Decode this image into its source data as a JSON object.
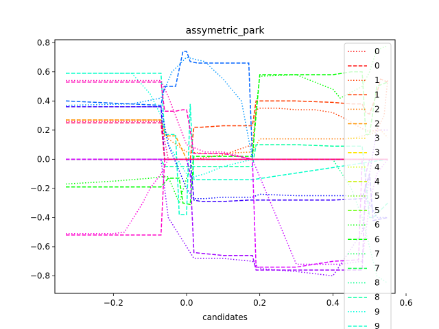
{
  "chart_data": {
    "type": "line",
    "title": "assymetric_park",
    "xlabel": "candidates",
    "ylabel": "",
    "xlim": [
      -0.36,
      0.57
    ],
    "ylim": [
      -0.92,
      0.82
    ],
    "xticks": [
      -0.2,
      0.0,
      0.2,
      0.4,
      0.6
    ],
    "xtick_labels": [
      "−0.2",
      "0.0",
      "0.2",
      "0.4",
      "0.6"
    ],
    "yticks": [
      -0.8,
      -0.6,
      -0.4,
      -0.2,
      0.0,
      0.2,
      0.4,
      0.6,
      0.8
    ],
    "ytick_labels": [
      "−0.8",
      "−0.6",
      "−0.4",
      "−0.2",
      "0.0",
      "0.2",
      "0.4",
      "0.6",
      "0.8"
    ],
    "grid": false,
    "legend_placement": "right",
    "series": [
      {
        "name": "0",
        "style": "dotted",
        "color": "#ff0000",
        "x": [
          -0.33,
          0.55
        ],
        "y": [
          0.0,
          0.0
        ]
      },
      {
        "name": "0",
        "style": "dashed",
        "color": "#ff0000",
        "x": [
          -0.33,
          0.55
        ],
        "y": [
          0.0,
          0.0
        ]
      },
      {
        "name": "1",
        "style": "dotted",
        "color": "#ff3c00",
        "x": [
          -0.33,
          -0.07,
          -0.05,
          0.0,
          0.02,
          0.1,
          0.18,
          0.19,
          0.2,
          0.25,
          0.3,
          0.35,
          0.4,
          0.44,
          0.48,
          0.5,
          0.52,
          0.54,
          0.55
        ],
        "y": [
          0.0,
          0.0,
          0.0,
          0.0,
          0.0,
          0.03,
          0.1,
          0.34,
          0.35,
          0.35,
          0.34,
          0.34,
          0.32,
          0.27,
          0.21,
          0.19,
          0.2,
          0.3,
          0.55
        ]
      },
      {
        "name": "1",
        "style": "dashed",
        "color": "#ff3c00",
        "x": [
          -0.33,
          -0.07,
          -0.05,
          0.0,
          0.01,
          0.02,
          0.04,
          0.1,
          0.15,
          0.18,
          0.19,
          0.25,
          0.3,
          0.4,
          0.45,
          0.48,
          0.49,
          0.5,
          0.52,
          0.53,
          0.55
        ],
        "y": [
          0.0,
          0.0,
          0.0,
          0.0,
          0.0,
          0.22,
          0.22,
          0.23,
          0.23,
          0.23,
          0.4,
          0.4,
          0.4,
          0.39,
          0.38,
          0.38,
          0.32,
          0.31,
          0.45,
          0.55,
          0.53
        ]
      },
      {
        "name": "2",
        "style": "dotted",
        "color": "#ff7800",
        "x": [
          -0.33,
          -0.1,
          -0.07,
          -0.05,
          0.0,
          0.05,
          0.1,
          0.18,
          0.2,
          0.3,
          0.4,
          0.45,
          0.48,
          0.5,
          0.53,
          0.55
        ],
        "y": [
          0.27,
          0.27,
          0.27,
          0.14,
          0.05,
          0.04,
          0.04,
          0.05,
          0.14,
          0.14,
          0.14,
          0.14,
          0.16,
          0.17,
          0.2,
          0.15
        ]
      },
      {
        "name": "2",
        "style": "dashed",
        "color": "#ff9600",
        "x": [
          -0.33,
          -0.07,
          -0.06,
          -0.05,
          -0.03,
          0.0,
          0.55
        ],
        "y": [
          0.27,
          0.27,
          0.16,
          0.16,
          0.16,
          0.0,
          0.0
        ]
      },
      {
        "name": "3",
        "style": "dotted",
        "color": "#ffd200",
        "x": [
          -0.33,
          0.55
        ],
        "y": [
          0.0,
          0.0
        ]
      },
      {
        "name": "3",
        "style": "dashed",
        "color": "#ffe600",
        "x": [
          -0.33,
          0.55
        ],
        "y": [
          0.0,
          0.0
        ]
      },
      {
        "name": "4",
        "style": "dotted",
        "color": "#d2ff00",
        "x": [
          -0.33,
          0.55
        ],
        "y": [
          0.0,
          0.0
        ]
      },
      {
        "name": "4",
        "style": "dashed",
        "color": "#c8f000",
        "x": [
          -0.33,
          0.55
        ],
        "y": [
          0.0,
          0.0
        ]
      },
      {
        "name": "5",
        "style": "dotted",
        "color": "#78ff00",
        "x": [
          -0.33,
          0.55
        ],
        "y": [
          0.0,
          0.0
        ]
      },
      {
        "name": "5",
        "style": "dashed",
        "color": "#64ff00",
        "x": [
          -0.33,
          0.55
        ],
        "y": [
          0.0,
          0.0
        ]
      },
      {
        "name": "6",
        "style": "dotted",
        "color": "#00ff00",
        "x": [
          -0.33,
          -0.2,
          -0.1,
          -0.07,
          -0.05,
          -0.02,
          0.0,
          0.02,
          0.1,
          0.15,
          0.18,
          0.19,
          0.2,
          0.3,
          0.4,
          0.42,
          0.48,
          0.5,
          0.52,
          0.55
        ],
        "y": [
          -0.17,
          -0.15,
          -0.13,
          -0.12,
          -0.12,
          -0.3,
          -0.13,
          0.0,
          0.0,
          0.0,
          0.0,
          0.35,
          0.57,
          0.58,
          0.48,
          0.42,
          0.5,
          0.6,
          0.75,
          0.78
        ]
      },
      {
        "name": "6",
        "style": "dashed",
        "color": "#00ff00",
        "x": [
          -0.33,
          -0.07,
          -0.05,
          -0.02,
          -0.01,
          0.01,
          0.02,
          0.05,
          0.1,
          0.18,
          0.19,
          0.2,
          0.3,
          0.4,
          0.45,
          0.48,
          0.49,
          0.5,
          0.52,
          0.55
        ],
        "y": [
          -0.19,
          -0.19,
          -0.13,
          -0.13,
          -0.3,
          -0.31,
          0.02,
          0.02,
          0.02,
          0.02,
          0.3,
          0.58,
          0.58,
          0.58,
          0.6,
          0.6,
          0.17,
          0.17,
          0.5,
          0.53
        ]
      },
      {
        "name": "7",
        "style": "dotted",
        "color": "#00ff50",
        "x": [
          -0.33,
          0.55
        ],
        "y": [
          0.0,
          0.0
        ]
      },
      {
        "name": "7",
        "style": "dashed",
        "color": "#00ff3c",
        "x": [
          -0.33,
          0.55
        ],
        "y": [
          0.0,
          0.0
        ]
      },
      {
        "name": "8",
        "style": "dotted",
        "color": "#00ff8c",
        "x": [
          -0.33,
          0.0,
          0.18,
          0.4,
          0.45,
          0.48,
          0.5,
          0.52,
          0.55
        ],
        "y": [
          0.0,
          0.0,
          0.0,
          0.0,
          -0.2,
          -0.4,
          -0.6,
          -0.8,
          -0.85
        ]
      },
      {
        "name": "8",
        "style": "dashed",
        "color": "#00ffa0",
        "x": [
          -0.33,
          -0.07,
          -0.06,
          -0.03,
          0.0,
          0.02,
          0.05,
          0.1,
          0.18,
          0.19,
          0.3,
          0.4,
          0.48,
          0.5,
          0.51,
          0.55
        ],
        "y": [
          0.0,
          0.0,
          -0.05,
          -0.05,
          -0.05,
          -0.05,
          -0.05,
          -0.05,
          -0.05,
          0.1,
          0.1,
          0.09,
          0.09,
          -0.4,
          -0.4,
          -0.3
        ]
      },
      {
        "name": "9",
        "style": "dotted",
        "color": "#00ffdc",
        "x": [
          -0.33,
          -0.15,
          -0.1,
          -0.07,
          -0.05,
          0.0,
          0.02,
          0.05,
          0.1,
          0.18,
          0.55
        ],
        "y": [
          0.59,
          0.59,
          0.45,
          0.3,
          0.1,
          -0.1,
          -0.12,
          -0.1,
          -0.05,
          0.0,
          0.0
        ]
      },
      {
        "name": "9",
        "style": "dashed",
        "color": "#00ffc8",
        "x": [
          -0.33,
          -0.07,
          -0.06,
          -0.03,
          -0.02,
          0.0,
          0.01,
          0.02,
          0.1,
          0.15,
          0.18,
          0.55
        ],
        "y": [
          0.59,
          0.59,
          0.17,
          0.17,
          -0.38,
          -0.38,
          0.38,
          -0.14,
          -0.14,
          -0.14,
          -0.14,
          0.0
        ]
      },
      {
        "name": "",
        "style": "dotted",
        "color": "#0096ff",
        "x": [
          -0.33,
          -0.15,
          -0.07,
          -0.04,
          0.0,
          0.05,
          0.1,
          0.15,
          0.18,
          0.2,
          0.55
        ],
        "y": [
          0.37,
          0.38,
          0.42,
          0.6,
          0.7,
          0.67,
          0.55,
          0.4,
          0.0,
          0.0,
          0.0
        ]
      },
      {
        "name": "",
        "style": "dashed",
        "color": "#0064ff",
        "x": [
          -0.33,
          -0.07,
          -0.06,
          -0.03,
          -0.01,
          0.0,
          0.01,
          0.03,
          0.1,
          0.17,
          0.18,
          0.55
        ],
        "y": [
          0.4,
          0.37,
          0.5,
          0.5,
          0.74,
          0.74,
          0.67,
          0.66,
          0.66,
          0.66,
          0.0,
          0.0
        ]
      },
      {
        "name": "",
        "style": "dotted",
        "color": "#0000ff",
        "x": [
          -0.33,
          -0.1,
          -0.07,
          -0.05,
          0.0,
          0.02,
          0.05,
          0.1,
          0.18,
          0.19,
          0.2,
          0.3,
          0.4,
          0.48,
          0.5,
          0.52,
          0.55
        ],
        "y": [
          0.36,
          0.36,
          0.36,
          0.1,
          -0.2,
          -0.27,
          -0.27,
          -0.26,
          -0.26,
          -0.25,
          -0.24,
          -0.25,
          -0.25,
          -0.25,
          -0.3,
          -0.4,
          -0.4
        ]
      },
      {
        "name": "",
        "style": "dashed",
        "color": "#3c00ff",
        "x": [
          -0.33,
          -0.07,
          -0.06,
          0.0,
          0.01,
          0.02,
          0.04,
          0.1,
          0.17,
          0.18,
          0.19,
          0.3,
          0.4,
          0.48,
          0.5,
          0.51,
          0.55
        ],
        "y": [
          0.36,
          0.36,
          0.0,
          0.0,
          0.0,
          -0.28,
          -0.29,
          -0.29,
          -0.28,
          -0.28,
          -0.28,
          -0.28,
          -0.28,
          -0.27,
          -0.1,
          -0.42,
          -0.4
        ]
      },
      {
        "name": "",
        "style": "dotted",
        "color": "#8c00ff",
        "x": [
          -0.33,
          -0.07,
          -0.05,
          0.0,
          0.02,
          0.1,
          0.18,
          0.2,
          0.3,
          0.4,
          0.48,
          0.5,
          0.52,
          0.55
        ],
        "y": [
          0.0,
          0.0,
          -0.4,
          -0.6,
          -0.68,
          -0.68,
          -0.7,
          -0.75,
          -0.77,
          -0.8,
          -0.5,
          -0.1,
          0.2,
          0.2
        ]
      },
      {
        "name": "",
        "style": "dashed",
        "color": "#a000ff",
        "x": [
          -0.33,
          -0.07,
          0.0,
          0.01,
          0.02,
          0.1,
          0.18,
          0.19,
          0.3,
          0.4,
          0.48,
          0.49,
          0.5,
          0.52,
          0.55
        ],
        "y": [
          0.0,
          0.0,
          0.0,
          -0.1,
          -0.64,
          -0.66,
          -0.66,
          -0.76,
          -0.76,
          -0.76,
          -0.76,
          -0.1,
          0.0,
          0.0,
          0.0
        ]
      },
      {
        "name": "",
        "style": "dotted",
        "color": "#c800ff",
        "x": [
          -0.33,
          0.0,
          0.18,
          0.3,
          0.42,
          0.48,
          0.5,
          0.52,
          0.55
        ],
        "y": [
          0.0,
          0.0,
          0.0,
          -0.72,
          -0.72,
          -0.7,
          -0.3,
          -0.1,
          0.0
        ]
      },
      {
        "name": "",
        "style": "dashed",
        "color": "#dc00ff",
        "x": [
          -0.33,
          0.18,
          0.19,
          0.3,
          0.4,
          0.47,
          0.48,
          0.55
        ],
        "y": [
          0.0,
          0.0,
          -0.74,
          -0.74,
          -0.7,
          -0.69,
          0.0,
          0.0
        ]
      },
      {
        "name": "",
        "style": "dotted",
        "color": "#ff00dc",
        "x": [
          -0.33,
          -0.2,
          -0.17,
          -0.12,
          -0.1,
          -0.07,
          -0.05,
          0.0,
          0.55
        ],
        "y": [
          -0.51,
          -0.51,
          -0.5,
          -0.3,
          -0.2,
          -0.1,
          0.0,
          0.0,
          0.0
        ]
      },
      {
        "name": "",
        "style": "dashed",
        "color": "#ff00c8",
        "x": [
          -0.33,
          -0.07,
          -0.06,
          -0.03,
          0.0,
          0.55
        ],
        "y": [
          -0.52,
          -0.52,
          0.0,
          0.0,
          0.0,
          0.0
        ]
      },
      {
        "name": "",
        "style": "dotted",
        "color": "#ff00b4",
        "x": [
          -0.33,
          -0.1,
          -0.07,
          -0.05,
          0.0,
          0.05,
          0.1,
          0.18,
          0.55
        ],
        "y": [
          0.54,
          0.54,
          0.54,
          0.43,
          0.1,
          0.05,
          0.05,
          0.0,
          0.0
        ]
      },
      {
        "name": "",
        "style": "dashed",
        "color": "#ff00b4",
        "x": [
          -0.33,
          -0.07,
          -0.06,
          -0.03,
          -0.01,
          0.0,
          0.01,
          0.02,
          0.05,
          0.1,
          0.18,
          0.55
        ],
        "y": [
          0.53,
          0.53,
          0.33,
          0.33,
          0.34,
          0.34,
          0.2,
          0.04,
          0.04,
          0.04,
          0.0,
          0.0
        ]
      },
      {
        "name": "",
        "style": "dotted",
        "color": "#ff0078",
        "x": [
          -0.33,
          -0.07,
          -0.05,
          0.0,
          0.55
        ],
        "y": [
          0.26,
          0.26,
          0.0,
          0.0,
          0.0
        ]
      },
      {
        "name": "",
        "style": "dashed",
        "color": "#ff0064",
        "x": [
          -0.33,
          -0.07,
          -0.06,
          0.0,
          0.55
        ],
        "y": [
          0.25,
          0.25,
          0.0,
          0.0,
          0.0
        ]
      }
    ],
    "legend_entries": [
      {
        "label": "0",
        "style": "dotted",
        "color": "#ff0000"
      },
      {
        "label": "0",
        "style": "dashed",
        "color": "#ff0000"
      },
      {
        "label": "1",
        "style": "dotted",
        "color": "#ff3c00"
      },
      {
        "label": "1",
        "style": "dashed",
        "color": "#ff3c00"
      },
      {
        "label": "2",
        "style": "dotted",
        "color": "#ff7800"
      },
      {
        "label": "2",
        "style": "dashed",
        "color": "#ff9600"
      },
      {
        "label": "3",
        "style": "dotted",
        "color": "#ffd200"
      },
      {
        "label": "3",
        "style": "dashed",
        "color": "#ffe600"
      },
      {
        "label": "4",
        "style": "dotted",
        "color": "#d2ff00"
      },
      {
        "label": "4",
        "style": "dashed",
        "color": "#c8f000"
      },
      {
        "label": "5",
        "style": "dotted",
        "color": "#78ff00"
      },
      {
        "label": "5",
        "style": "dashed",
        "color": "#64ff00"
      },
      {
        "label": "6",
        "style": "dotted",
        "color": "#00ff00"
      },
      {
        "label": "6",
        "style": "dashed",
        "color": "#00ff00"
      },
      {
        "label": "7",
        "style": "dotted",
        "color": "#00ff50"
      },
      {
        "label": "7",
        "style": "dashed",
        "color": "#00ff3c"
      },
      {
        "label": "8",
        "style": "dotted",
        "color": "#00ff8c"
      },
      {
        "label": "8",
        "style": "dashed",
        "color": "#00ffa0"
      },
      {
        "label": "9",
        "style": "dotted",
        "color": "#00ffdc"
      },
      {
        "label": "9",
        "style": "dashed",
        "color": "#00ffc8"
      }
    ]
  }
}
